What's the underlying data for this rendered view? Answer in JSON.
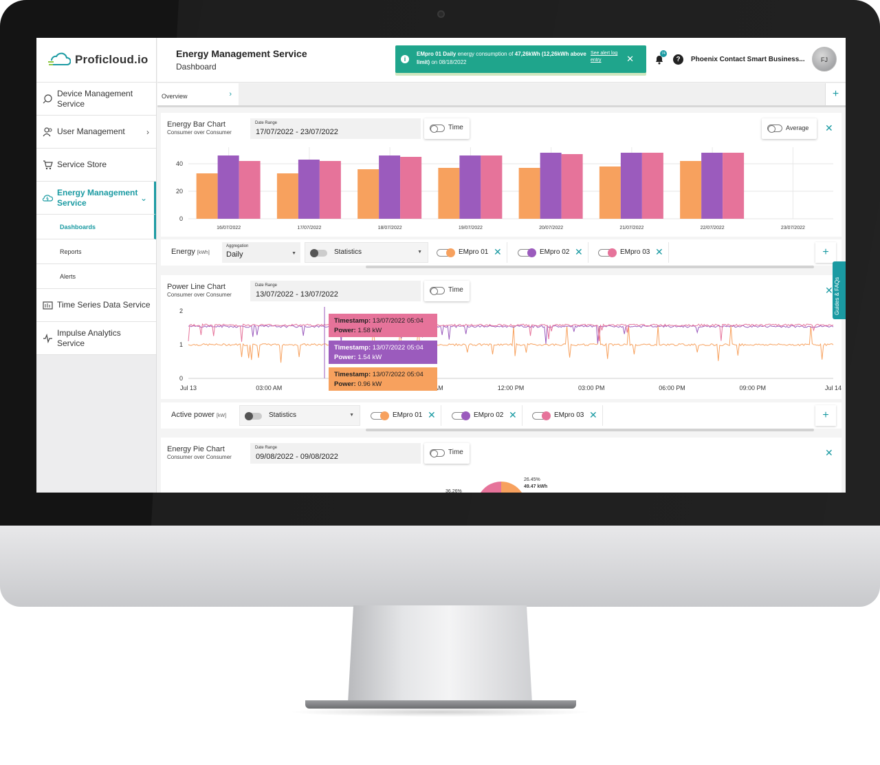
{
  "app": {
    "brand": "Proficloud.io"
  },
  "sidebar": {
    "items": [
      {
        "label": "Device Management Service",
        "icon": "device-management-icon"
      },
      {
        "label": "User Management",
        "icon": "users-icon"
      },
      {
        "label": "Service Store",
        "icon": "cart-icon"
      },
      {
        "label": "Energy Management Service",
        "icon": "energy-icon"
      },
      {
        "label": "Time Series Data Service",
        "icon": "time-series-icon"
      },
      {
        "label": "Impulse Analytics Service",
        "icon": "impulse-icon"
      }
    ],
    "sub_items": [
      "Dashboards",
      "Reports",
      "Alerts"
    ]
  },
  "header": {
    "title": "Energy Management Service",
    "subtitle": "Dashboard",
    "alert": {
      "text_bold": "EMpro 01 Daily",
      "text": " energy consumption of ",
      "value_bold": "47,26kWh (12,26kWh above limit)",
      "date": " on 08/18/2022",
      "link": "See alert log entry"
    },
    "notification_count": "74",
    "company": "Phoenix Contact Smart Business...",
    "avatar": "FJ"
  },
  "tabs": {
    "items": [
      "Overview"
    ]
  },
  "guides_label": "Guides & FAQs",
  "bar_panel": {
    "title": "Energy Bar Chart",
    "subtitle": "Consumer over Consumer",
    "date_range_label": "Date Range",
    "date_range": "17/07/2022 - 23/07/2022",
    "time_toggle": "Time",
    "average_toggle": "Average"
  },
  "energy_controls": {
    "label": "Energy",
    "unit": "[kWh]",
    "aggregation_label": "Aggregation",
    "aggregation": "Daily",
    "statistics": "Statistics",
    "devices": [
      {
        "name": "EMpro 01",
        "color": "#f7a15e"
      },
      {
        "name": "EMpro 02",
        "color": "#9b5bbd"
      },
      {
        "name": "EMpro 03",
        "color": "#e6739a"
      }
    ]
  },
  "line_panel": {
    "title": "Power Line Chart",
    "subtitle": "Consumer over Consumer",
    "date_range_label": "Date Range",
    "date_range": "13/07/2022 - 13/07/2022",
    "time_toggle": "Time",
    "tooltips": [
      {
        "label": "Timestamp:",
        "timestamp": "13/07/2022 05:04",
        "power_label": "Power:",
        "power": "1.58 kW",
        "color": "#e6739a"
      },
      {
        "label": "Timestamp:",
        "timestamp": "13/07/2022 05:04",
        "power_label": "Power:",
        "power": "1.54 kW",
        "color": "#9b5bbd"
      },
      {
        "label": "Timestamp:",
        "timestamp": "13/07/2022 05:04",
        "power_label": "Power:",
        "power": "0.96 kW",
        "color": "#f7a15e"
      }
    ]
  },
  "power_controls": {
    "label": "Active power",
    "unit": "[kW]",
    "statistics": "Statistics",
    "devices": [
      {
        "name": "EMpro 01",
        "color": "#f7a15e"
      },
      {
        "name": "EMpro 02",
        "color": "#9b5bbd"
      },
      {
        "name": "EMpro 03",
        "color": "#e6739a"
      }
    ]
  },
  "pie_panel": {
    "title": "Energy Pie Chart",
    "subtitle": "Consumer over Consumer",
    "date_range_label": "Date Range",
    "date_range": "09/08/2022 - 09/08/2022",
    "time_toggle": "Time"
  },
  "chart_data": [
    {
      "type": "bar",
      "categories": [
        "16/07/2022",
        "17/07/2022",
        "18/07/2022",
        "19/07/2022",
        "20/07/2022",
        "21/07/2022",
        "22/07/2022",
        "23/07/2022"
      ],
      "series": [
        {
          "name": "EMpro 01",
          "color": "#f7a15e",
          "values": [
            33,
            33,
            36,
            37,
            37,
            38,
            42,
            null
          ]
        },
        {
          "name": "EMpro 02",
          "color": "#9b5bbd",
          "values": [
            46,
            43,
            46,
            46,
            48,
            48,
            48,
            null
          ]
        },
        {
          "name": "EMpro 03",
          "color": "#e6739a",
          "values": [
            42,
            42,
            45,
            46,
            47,
            48,
            48,
            null
          ]
        }
      ],
      "yticks": [
        0,
        20,
        40
      ],
      "ylim": [
        0,
        48
      ]
    },
    {
      "type": "line",
      "xticks": [
        "Jul 13",
        "03:00 AM",
        "06:00 AM",
        "09:00 AM",
        "12:00 PM",
        "03:00 PM",
        "06:00 PM",
        "09:00 PM",
        "Jul 14"
      ],
      "yticks": [
        0,
        1,
        2
      ],
      "ylim": [
        0,
        2
      ],
      "series": [
        {
          "name": "EMpro 01",
          "color": "#f7a15e",
          "level": 1.0
        },
        {
          "name": "EMpro 02",
          "color": "#9b5bbd",
          "level": 1.54
        },
        {
          "name": "EMpro 03",
          "color": "#e6739a",
          "level": 1.58
        }
      ]
    },
    {
      "type": "pie",
      "labels": [
        {
          "percent": "26.45%",
          "value": "49.47 kWh"
        },
        {
          "percent": "36.26%"
        }
      ]
    }
  ]
}
